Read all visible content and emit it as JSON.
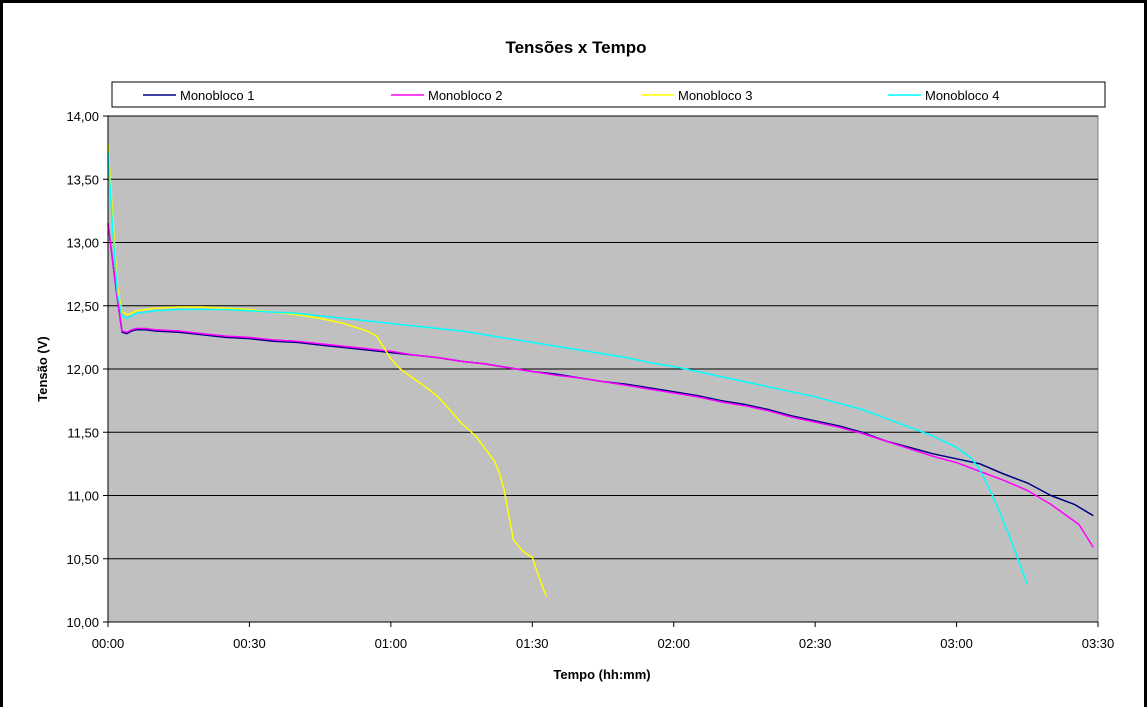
{
  "chart_data": {
    "type": "line",
    "title": "Tensões x Tempo",
    "xlabel": "Tempo (hh:mm)",
    "ylabel": "Tensão (V)",
    "xlim": [
      0,
      210
    ],
    "ylim": [
      10.0,
      14.0
    ],
    "x_ticks": [
      "00:00",
      "00:30",
      "01:00",
      "01:30",
      "02:00",
      "02:30",
      "03:00",
      "03:30"
    ],
    "y_ticks": [
      "10,00",
      "10,50",
      "11,00",
      "11,50",
      "12,00",
      "12,50",
      "13,00",
      "13,50",
      "14,00"
    ],
    "grid": "horizontal",
    "legend_position": "top",
    "plot_background": "#c0c0c0",
    "series": [
      {
        "name": "Monobloco 1",
        "color": "#000080",
        "x": [
          0,
          1,
          2,
          3,
          4,
          5,
          6,
          8,
          10,
          15,
          20,
          25,
          30,
          35,
          40,
          45,
          50,
          55,
          60,
          65,
          70,
          75,
          80,
          85,
          90,
          95,
          100,
          105,
          110,
          115,
          120,
          125,
          130,
          135,
          140,
          145,
          150,
          155,
          160,
          165,
          170,
          175,
          180,
          185,
          190,
          195,
          200,
          205,
          209
        ],
        "y": [
          13.15,
          12.85,
          12.55,
          12.29,
          12.28,
          12.3,
          12.31,
          12.31,
          12.3,
          12.29,
          12.27,
          12.25,
          12.24,
          12.22,
          12.21,
          12.19,
          12.17,
          12.15,
          12.13,
          12.11,
          12.09,
          12.06,
          12.04,
          12.01,
          11.98,
          11.96,
          11.93,
          11.9,
          11.88,
          11.85,
          11.82,
          11.79,
          11.75,
          11.72,
          11.68,
          11.63,
          11.59,
          11.55,
          11.5,
          11.43,
          11.38,
          11.33,
          11.29,
          11.25,
          11.17,
          11.1,
          11.0,
          10.93,
          10.84
        ]
      },
      {
        "name": "Monobloco 2",
        "color": "#ff00ff",
        "x": [
          0,
          1,
          2,
          3,
          4,
          5,
          6,
          8,
          10,
          15,
          20,
          25,
          30,
          35,
          40,
          45,
          50,
          55,
          60,
          65,
          70,
          75,
          80,
          85,
          90,
          95,
          100,
          105,
          110,
          115,
          120,
          125,
          130,
          135,
          140,
          145,
          150,
          155,
          160,
          165,
          170,
          175,
          180,
          185,
          190,
          195,
          200,
          203,
          206,
          209
        ],
        "y": [
          13.15,
          12.85,
          12.55,
          12.3,
          12.29,
          12.31,
          12.32,
          12.32,
          12.31,
          12.3,
          12.28,
          12.26,
          12.25,
          12.23,
          12.22,
          12.2,
          12.18,
          12.16,
          12.14,
          12.11,
          12.09,
          12.06,
          12.04,
          12.01,
          11.98,
          11.95,
          11.93,
          11.9,
          11.87,
          11.84,
          11.81,
          11.78,
          11.74,
          11.71,
          11.67,
          11.62,
          11.58,
          11.54,
          11.49,
          11.43,
          11.37,
          11.31,
          11.26,
          11.19,
          11.12,
          11.04,
          10.93,
          10.85,
          10.77,
          10.59
        ]
      },
      {
        "name": "Monobloco 3",
        "color": "#ffff00",
        "x": [
          0,
          1,
          2,
          3,
          4,
          5,
          6,
          8,
          10,
          15,
          20,
          25,
          30,
          35,
          40,
          45,
          50,
          55,
          57,
          58,
          60,
          62,
          65,
          68,
          70,
          72,
          75,
          78,
          80,
          82,
          83,
          84,
          85,
          86,
          88,
          90,
          91,
          93
        ],
        "y": [
          13.78,
          13.2,
          12.65,
          12.45,
          12.43,
          12.44,
          12.46,
          12.47,
          12.48,
          12.49,
          12.49,
          12.48,
          12.47,
          12.45,
          12.43,
          12.4,
          12.36,
          12.3,
          12.26,
          12.2,
          12.08,
          12.0,
          11.92,
          11.84,
          11.78,
          11.7,
          11.57,
          11.47,
          11.37,
          11.27,
          11.18,
          11.05,
          10.85,
          10.65,
          10.56,
          10.51,
          10.4,
          10.2
        ]
      },
      {
        "name": "Monobloco 4",
        "color": "#00ffff",
        "x": [
          0,
          1,
          2,
          3,
          4,
          5,
          6,
          8,
          10,
          15,
          20,
          25,
          30,
          35,
          40,
          45,
          50,
          55,
          60,
          65,
          70,
          75,
          80,
          85,
          90,
          95,
          100,
          105,
          110,
          115,
          120,
          125,
          130,
          135,
          140,
          145,
          150,
          155,
          160,
          165,
          170,
          175,
          180,
          183,
          185,
          187,
          189,
          191,
          193,
          195
        ],
        "y": [
          13.72,
          13.1,
          12.6,
          12.42,
          12.4,
          12.42,
          12.44,
          12.45,
          12.46,
          12.47,
          12.47,
          12.47,
          12.46,
          12.45,
          12.44,
          12.42,
          12.4,
          12.38,
          12.36,
          12.34,
          12.32,
          12.3,
          12.27,
          12.24,
          12.21,
          12.18,
          12.15,
          12.12,
          12.09,
          12.05,
          12.02,
          11.98,
          11.94,
          11.9,
          11.86,
          11.82,
          11.78,
          11.73,
          11.68,
          11.61,
          11.54,
          11.47,
          11.38,
          11.3,
          11.2,
          11.05,
          10.88,
          10.7,
          10.5,
          10.3
        ]
      }
    ]
  }
}
